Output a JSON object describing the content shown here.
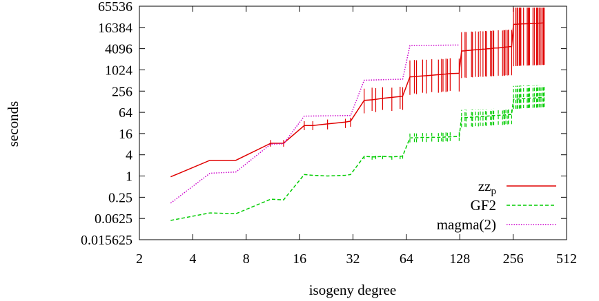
{
  "chart_data": {
    "type": "line",
    "title": "",
    "xlabel": "isogeny degree",
    "ylabel": "seconds",
    "x_scale": "log2",
    "y_scale": "log2",
    "xlim": [
      2,
      512
    ],
    "ylim": [
      0.015625,
      65536
    ],
    "x_ticks": [
      2,
      4,
      8,
      16,
      32,
      64,
      128,
      256,
      512
    ],
    "x_tick_labels": [
      "2",
      "4",
      "8",
      "16",
      "32",
      "64",
      "128",
      "256",
      "512"
    ],
    "y_ticks": [
      0.015625,
      0.0625,
      0.25,
      1,
      4,
      16,
      64,
      256,
      1024,
      4096,
      16384,
      65536
    ],
    "y_tick_labels": [
      "0.015625",
      "0.0625",
      "0.25",
      "1",
      "4",
      "16",
      "64",
      "256",
      "1024",
      "4096",
      "16384",
      "65536"
    ],
    "grid": false,
    "legend_position": "bottom-right",
    "series": [
      {
        "name": "zz_p",
        "color": "#e00000",
        "dash": "solid",
        "x": [
          3,
          5,
          7,
          11,
          13,
          17,
          19,
          23,
          29,
          31,
          37,
          41,
          43,
          47,
          53,
          59,
          61,
          67,
          71,
          73,
          79,
          83,
          89,
          97,
          101,
          103,
          107,
          109,
          113,
          127,
          131,
          137,
          139,
          149,
          151,
          157,
          163,
          167,
          173,
          179,
          181,
          191,
          193,
          197,
          199,
          211,
          223,
          227,
          229,
          233,
          239,
          241,
          251,
          257,
          263,
          269,
          271,
          277,
          281,
          283,
          293,
          307,
          311,
          313,
          317,
          331,
          337,
          347,
          349,
          353,
          359,
          367,
          373,
          379,
          383
        ],
        "y": [
          0.95,
          2.8,
          2.8,
          8.5,
          8.5,
          27,
          27,
          30,
          34,
          36,
          140,
          145,
          150,
          160,
          170,
          180,
          185,
          650,
          660,
          670,
          690,
          700,
          720,
          750,
          760,
          770,
          780,
          790,
          800,
          820,
          3500,
          3550,
          3600,
          3700,
          3750,
          3800,
          3850,
          3900,
          3950,
          4000,
          4050,
          4100,
          4150,
          4200,
          4250,
          4300,
          4400,
          4450,
          4500,
          4550,
          4600,
          4650,
          4700,
          20000,
          20100,
          20200,
          20300,
          20400,
          20500,
          20600,
          20700,
          20800,
          20900,
          21000,
          21100,
          21200,
          21300,
          21400,
          21500,
          21600,
          21700,
          21800,
          21900,
          22000,
          22100
        ],
        "err_lo": [
          null,
          null,
          null,
          6.8,
          6.8,
          20,
          20,
          21,
          23,
          25,
          60,
          70,
          65,
          75,
          70,
          80,
          75,
          200,
          220,
          210,
          230,
          220,
          240,
          230,
          240,
          250,
          240,
          250,
          260,
          250,
          600,
          620,
          610,
          640,
          630,
          650,
          640,
          660,
          650,
          670,
          660,
          680,
          670,
          690,
          680,
          700,
          690,
          710,
          700,
          720,
          710,
          730,
          720,
          1300,
          1320,
          1310,
          1340,
          1330,
          1350,
          1340,
          1360,
          1350,
          1370,
          1360,
          1380,
          1370,
          1390,
          1380,
          1400,
          1390,
          1410,
          1400,
          1420,
          1410,
          1430
        ],
        "err_hi": [
          null,
          null,
          null,
          10.5,
          10.5,
          36,
          36,
          40,
          42,
          45,
          300,
          320,
          310,
          330,
          320,
          340,
          330,
          1900,
          1950,
          1920,
          2000,
          1980,
          2050,
          2000,
          2100,
          2050,
          2150,
          2100,
          2200,
          2150,
          12000,
          12200,
          12100,
          12500,
          12300,
          12700,
          12500,
          12900,
          12700,
          13000,
          12800,
          13200,
          13000,
          13400,
          13200,
          13600,
          13400,
          13800,
          13600,
          14000,
          13800,
          14200,
          14000,
          60000,
          60000,
          60000,
          60000,
          60000,
          60000,
          60000,
          60000,
          60000,
          60000,
          60000,
          60000,
          60000,
          60000,
          60000,
          60000,
          60000,
          60000,
          60000,
          60000,
          60000,
          60000
        ]
      },
      {
        "name": "GF2",
        "color": "#00cc00",
        "dash": "dashed",
        "x": [
          3,
          5,
          7,
          11,
          13,
          17,
          19,
          23,
          29,
          31,
          37,
          41,
          43,
          47,
          53,
          59,
          61,
          67,
          71,
          73,
          79,
          83,
          89,
          97,
          101,
          103,
          107,
          109,
          113,
          127,
          131,
          137,
          139,
          149,
          151,
          157,
          163,
          167,
          173,
          179,
          181,
          191,
          193,
          197,
          199,
          211,
          223,
          227,
          229,
          233,
          239,
          241,
          251,
          257,
          263,
          269,
          271,
          277,
          281,
          283,
          293,
          307,
          311,
          313,
          317,
          331,
          337,
          347,
          349,
          353,
          359,
          367,
          373,
          379,
          383
        ],
        "y": [
          0.055,
          0.09,
          0.085,
          0.22,
          0.21,
          1.1,
          1.05,
          1.0,
          1.05,
          1.1,
          3.6,
          3.5,
          3.5,
          3.6,
          3.5,
          3.6,
          3.7,
          12,
          12.2,
          12.1,
          12.5,
          12.3,
          12.6,
          12.4,
          12.8,
          12.6,
          12.9,
          12.7,
          13,
          13.2,
          45,
          46,
          45.5,
          47,
          46.5,
          48,
          47.5,
          49,
          48.5,
          50,
          49.5,
          51,
          50.5,
          52,
          51.5,
          53,
          52.5,
          54,
          53.5,
          55,
          54.5,
          56,
          55.5,
          150,
          152,
          151,
          154,
          153,
          156,
          155,
          158,
          157,
          160,
          159,
          162,
          161,
          164,
          163,
          166,
          165,
          168,
          167,
          170,
          169,
          172
        ],
        "err_lo": [
          null,
          null,
          null,
          null,
          null,
          null,
          null,
          null,
          null,
          null,
          3.0,
          2.9,
          3.0,
          3.0,
          2.9,
          3.0,
          3.1,
          9.0,
          9.2,
          9.1,
          9.4,
          9.2,
          9.5,
          9.3,
          9.6,
          9.4,
          9.7,
          9.5,
          9.8,
          9.9,
          24,
          25,
          24.5,
          25.5,
          25,
          26,
          25.5,
          26.5,
          26,
          27,
          26.5,
          27.5,
          27,
          28,
          27.5,
          28.5,
          28,
          29,
          28.5,
          29.5,
          29,
          30,
          29.5,
          80,
          81,
          80.5,
          82,
          81.5,
          83,
          82.5,
          84,
          83.5,
          85,
          84.5,
          86,
          85.5,
          87,
          86.5,
          88,
          87.5,
          89,
          88.5,
          90,
          89.5,
          91
        ],
        "err_hi": [
          null,
          null,
          null,
          null,
          null,
          null,
          null,
          null,
          null,
          null,
          4.3,
          4.2,
          4.2,
          4.3,
          4.2,
          4.3,
          4.4,
          16,
          16.3,
          16.1,
          16.6,
          16.4,
          16.8,
          16.5,
          17,
          16.8,
          17.2,
          16.9,
          17.3,
          17.6,
          75,
          76,
          75.5,
          77,
          76.5,
          78,
          77.5,
          79,
          78.5,
          80,
          79.5,
          81,
          80.5,
          82,
          81.5,
          83,
          82.5,
          84,
          83.5,
          85,
          84.5,
          86,
          85.5,
          360,
          362,
          361,
          364,
          363,
          366,
          365,
          368,
          367,
          370,
          369,
          372,
          371,
          374,
          373,
          376,
          375,
          378,
          377,
          380,
          379,
          382
        ]
      },
      {
        "name": "magma(2)",
        "color": "#cc00cc",
        "dash": "dotted",
        "x": [
          3,
          5,
          7,
          11,
          13,
          17,
          31,
          37,
          61,
          67,
          127,
          131,
          251,
          257
        ],
        "y": [
          0.17,
          1.2,
          1.3,
          8.0,
          8.2,
          50,
          52,
          520,
          560,
          5000,
          5200,
          null,
          null,
          null
        ]
      }
    ]
  }
}
